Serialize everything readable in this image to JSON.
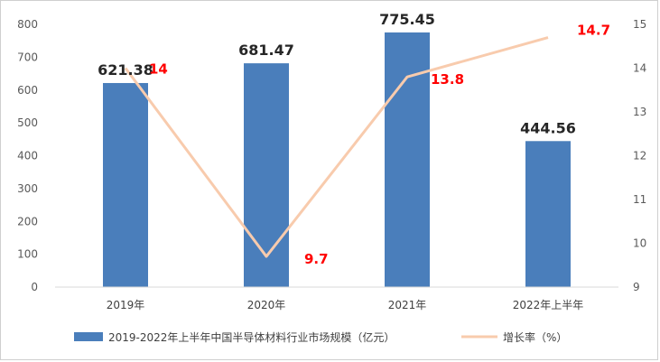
{
  "chart_data": {
    "type": "bar",
    "categories": [
      "2019年",
      "2020年",
      "2021年",
      "2022年上半年"
    ],
    "series": [
      {
        "name": "2019-2022年上半年中国半导体材料行业市场规模（亿元）",
        "type": "bar",
        "axis": "left",
        "values": [
          621.38,
          681.47,
          775.45,
          444.56
        ],
        "value_labels": [
          "621.38",
          "681.47",
          "775.45",
          "444.56"
        ],
        "color": "#4a7ebb"
      },
      {
        "name": "增长率（%）",
        "type": "line",
        "axis": "right",
        "values": [
          14,
          9.7,
          13.8,
          14.7
        ],
        "value_labels": [
          "14",
          "9.7",
          "13.8",
          "14.7"
        ],
        "color": "#f8cbad"
      }
    ],
    "y_left": {
      "min": 0,
      "max": 800,
      "step": 100,
      "ticks": [
        "0",
        "100",
        "200",
        "300",
        "400",
        "500",
        "600",
        "700",
        "800"
      ]
    },
    "y_right": {
      "min": 9,
      "max": 15,
      "step": 1,
      "ticks": [
        "9",
        "10",
        "11",
        "12",
        "13",
        "14",
        "15"
      ]
    },
    "grid": false,
    "legend_position": "bottom",
    "rate_label_color": "#ff0000"
  }
}
